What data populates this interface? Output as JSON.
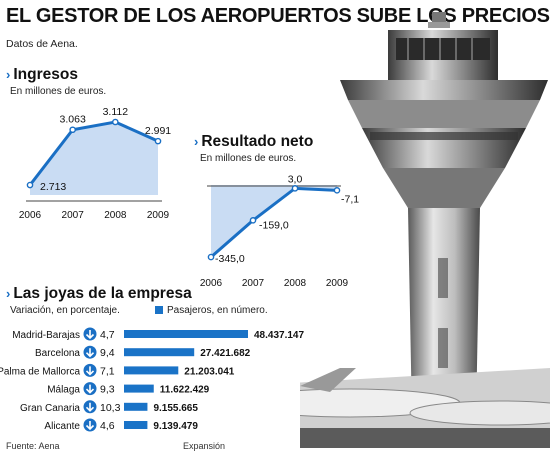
{
  "title": "EL GESTOR DE LOS AEROPUERTOS SUBE LOS PRECIOS",
  "subtitle": "Datos de Aena.",
  "footer": {
    "source": "Fuente: Aena",
    "credit": "Expansión"
  },
  "icons": {
    "section_marker": "chevron-right-icon",
    "trend": "down-arrow-circle-icon",
    "illustration": "control-tower-photo"
  },
  "colors": {
    "accent": "#1a6fc4",
    "area_fill": "#c9dcf3",
    "bar": "#1a73c7"
  },
  "chart_data": [
    {
      "type": "area",
      "title": "Ingresos",
      "subtitle": "En millones de euros.",
      "x": [
        "2006",
        "2007",
        "2008",
        "2009"
      ],
      "values": [
        2713,
        3063,
        3112,
        2991
      ],
      "labels": [
        "2.713",
        "3.063",
        "3.112",
        "2.991"
      ],
      "ylim": [
        2650,
        3150
      ],
      "grid": false
    },
    {
      "type": "area",
      "title": "Resultado neto",
      "subtitle": "En millones de euros.",
      "x": [
        "2006",
        "2007",
        "2008",
        "2009"
      ],
      "values": [
        -345.0,
        -159.0,
        3.0,
        -7.1
      ],
      "labels": [
        "-345,0",
        "-159,0",
        "3,0",
        "-7,1"
      ],
      "ylim": [
        -370,
        20
      ],
      "grid": false
    },
    {
      "type": "bar",
      "title": "Las joyas de la empresa",
      "subtitle": "Variación, en porcentaje.",
      "legend": "Pasajeros, en número.",
      "categories": [
        "Madrid-Barajas",
        "Barcelona",
        "Palma de Mallorca",
        "Málaga",
        "Gran Canaria",
        "Alicante"
      ],
      "variation": [
        "4,7",
        "9,4",
        "7,1",
        "9,3",
        "10,3",
        "4,6"
      ],
      "values": [
        48437147,
        27421682,
        21203041,
        11622429,
        9155665,
        9139479
      ],
      "labels": [
        "48.437.147",
        "27.421.682",
        "21.203.041",
        "11.622.429",
        "9.155.665",
        "9.139.479"
      ],
      "trend": "down"
    }
  ]
}
